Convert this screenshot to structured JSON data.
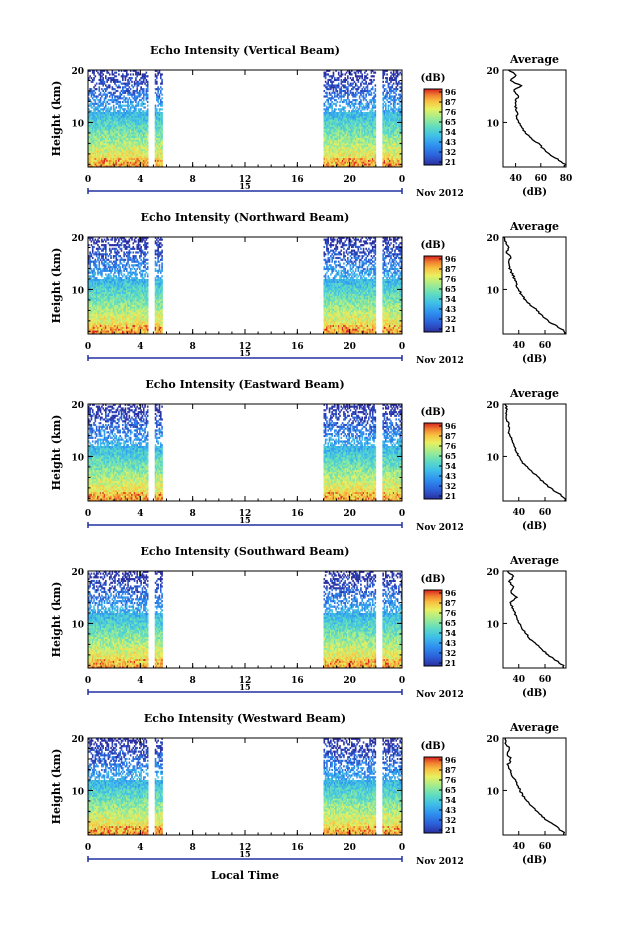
{
  "chart_data": {
    "type": "heatmap",
    "xlabel": "Local Time",
    "date_label": "Nov 2012",
    "day_label": "15",
    "x_ticks": [
      "0",
      "4",
      "8",
      "12",
      "16",
      "20",
      "0"
    ],
    "x_range_hours": [
      0,
      24
    ],
    "ylabel": "Height (km)",
    "y_range_km": [
      1.5,
      20
    ],
    "y_ticks": [
      10,
      20
    ],
    "colorbar_unit": "(dB)",
    "colorbar_ticks": [
      96,
      87,
      76,
      65,
      54,
      43,
      32,
      21
    ],
    "colorbar_ticks_labels": [
      "96",
      "87",
      "76",
      "65",
      "54",
      "43",
      "32",
      "21"
    ],
    "data_gaps_hours": [
      [
        4.6,
        5.1
      ],
      [
        5.7,
        18.0
      ],
      [
        22.0,
        22.5
      ]
    ],
    "average_profile": {
      "title": "Average",
      "xlabel": "(dB)",
      "y_range_km": [
        1.5,
        20
      ],
      "y_ticks": [
        10,
        20
      ]
    },
    "panels": [
      {
        "title": "Echo Intensity (Vertical Beam)",
        "avg_xlim": [
          30,
          80
        ],
        "avg_xticks": [
          40,
          60,
          80
        ],
        "profile_height_km": [
          2,
          3,
          4,
          5,
          6,
          7,
          8,
          9,
          10,
          11,
          12,
          13,
          14,
          15,
          16,
          17,
          18,
          19,
          20
        ],
        "profile_db": [
          79,
          73,
          66,
          62,
          58,
          52,
          48,
          45,
          43,
          41,
          41,
          40,
          40,
          42,
          38,
          44,
          36,
          41,
          34
        ]
      },
      {
        "title": "Echo Intensity (Northward Beam)",
        "avg_xlim": [
          28,
          76
        ],
        "avg_xticks": [
          40,
          60
        ],
        "profile_height_km": [
          2,
          3,
          4,
          5,
          6,
          7,
          8,
          9,
          10,
          11,
          12,
          13,
          14,
          15,
          16,
          17,
          18,
          19,
          20
        ],
        "profile_db": [
          75,
          69,
          62,
          58,
          54,
          49,
          45,
          42,
          40,
          38,
          37,
          35,
          33,
          32,
          34,
          31,
          32,
          30,
          29
        ]
      },
      {
        "title": "Echo Intensity (Eastward Beam)",
        "avg_xlim": [
          28,
          76
        ],
        "avg_xticks": [
          40,
          60
        ],
        "profile_height_km": [
          2,
          3,
          4,
          5,
          6,
          7,
          8,
          9,
          10,
          11,
          12,
          13,
          14,
          15,
          16,
          17,
          18,
          19,
          20
        ],
        "profile_db": [
          75,
          70,
          64,
          59,
          55,
          50,
          46,
          42,
          40,
          38,
          36,
          35,
          33,
          32,
          33,
          31,
          30,
          31,
          30
        ]
      },
      {
        "title": "Echo Intensity (Southward Beam)",
        "avg_xlim": [
          28,
          76
        ],
        "avg_xticks": [
          40,
          60
        ],
        "profile_height_km": [
          2,
          3,
          4,
          5,
          6,
          7,
          8,
          9,
          10,
          11,
          12,
          13,
          14,
          15,
          16,
          17,
          18,
          19,
          20
        ],
        "profile_db": [
          74,
          68,
          62,
          58,
          54,
          49,
          46,
          43,
          41,
          38,
          37,
          35,
          34,
          38,
          34,
          36,
          33,
          36,
          31
        ]
      },
      {
        "title": "Echo Intensity (Westward Beam)",
        "avg_xlim": [
          28,
          76
        ],
        "avg_xticks": [
          40,
          60
        ],
        "profile_height_km": [
          2,
          3,
          4,
          5,
          6,
          7,
          8,
          9,
          10,
          11,
          12,
          13,
          14,
          15,
          16,
          17,
          18,
          19,
          20
        ],
        "profile_db": [
          74,
          69,
          63,
          58,
          54,
          50,
          46,
          43,
          41,
          39,
          37,
          35,
          33,
          32,
          34,
          31,
          33,
          30,
          30
        ]
      }
    ],
    "color_stops": [
      "#2b2fa0",
      "#2c5fd8",
      "#2f8ff0",
      "#3fbfe8",
      "#5fdcc0",
      "#a0ec90",
      "#e8f060",
      "#f8c040",
      "#f08030",
      "#d82020"
    ]
  }
}
